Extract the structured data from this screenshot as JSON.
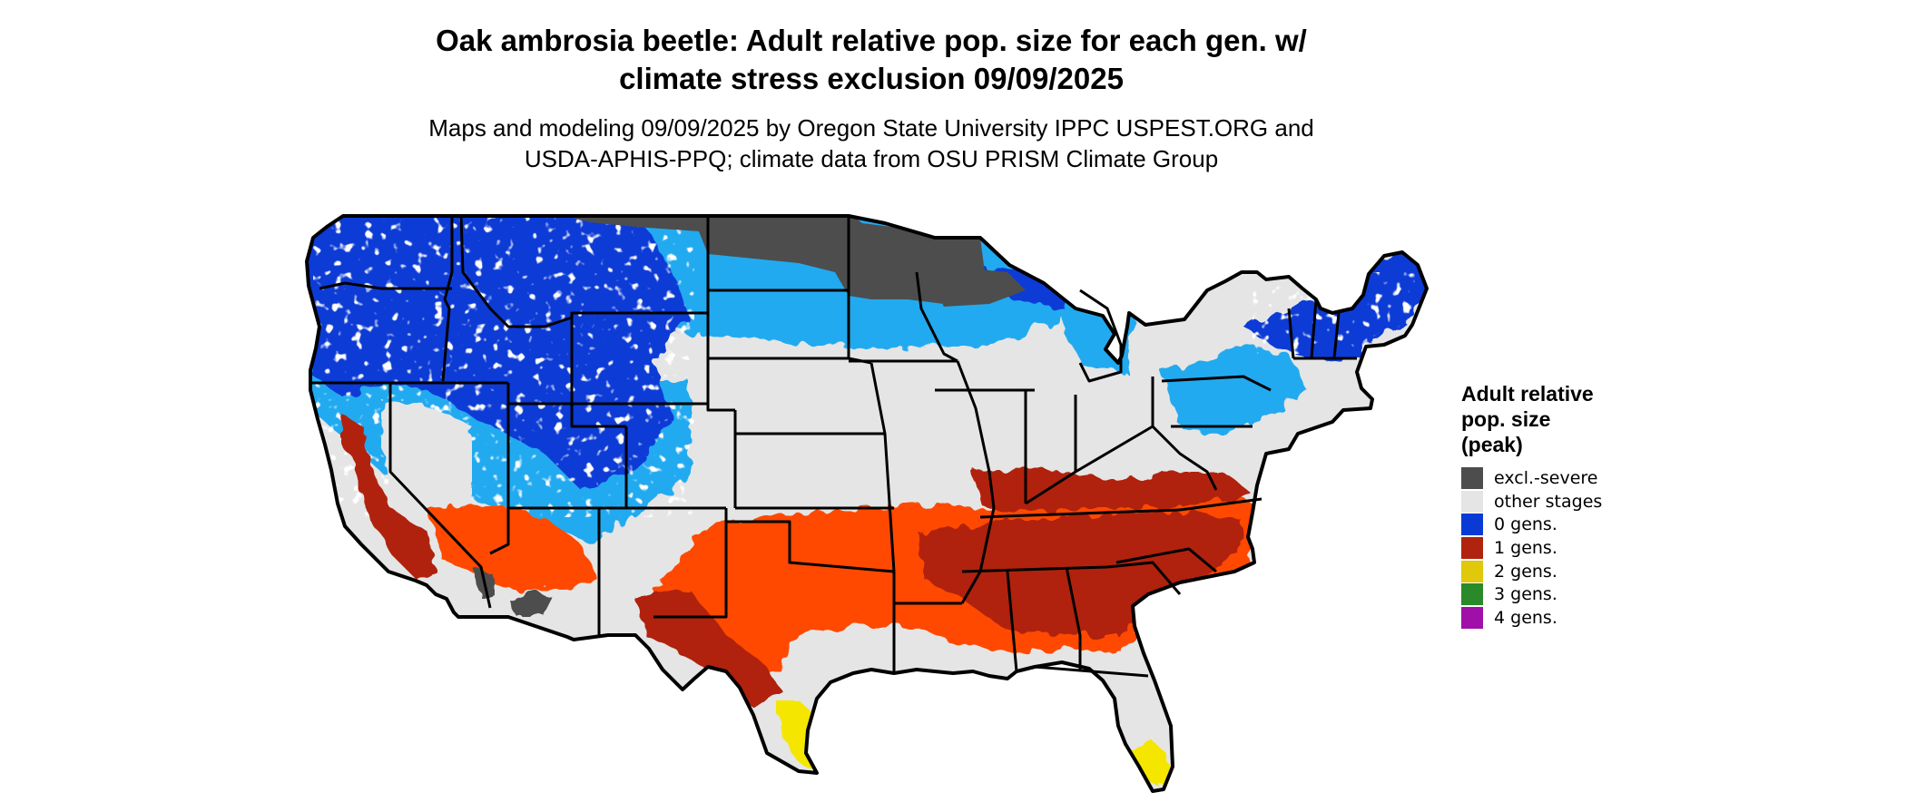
{
  "title_lines": [
    "Oak ambrosia beetle: Adult relative pop. size for each gen. w/",
    "climate stress exclusion 09/09/2025"
  ],
  "subtitle_lines": [
    "Maps and modeling 09/09/2025 by Oregon State University IPPC USPEST.ORG and",
    "USDA-APHIS-PPQ; climate data from OSU PRISM Climate Group"
  ],
  "legend": {
    "title_lines": [
      "Adult relative",
      "pop. size",
      "(peak)"
    ],
    "items": [
      {
        "label": "excl.-severe",
        "color": "#4d4d4d"
      },
      {
        "label": "other stages",
        "color": "#e5e5e5"
      },
      {
        "label": "0 gens.",
        "color": "#0a3ad6"
      },
      {
        "label": "1 gens.",
        "color": "#b0230f"
      },
      {
        "label": "2 gens.",
        "color": "#e0c80a"
      },
      {
        "label": "3 gens.",
        "color": "#2a8a2a"
      },
      {
        "label": "4 gens.",
        "color": "#a010a8"
      }
    ]
  },
  "colors": {
    "cold_dark": "#0a3ad6",
    "cold_light": "#22aaf0",
    "hot_orange": "#ff4a00",
    "hot_red": "#b0230f",
    "yellow": "#f5e600",
    "excluded": "#4d4d4d",
    "other": "#e5e5e5"
  }
}
